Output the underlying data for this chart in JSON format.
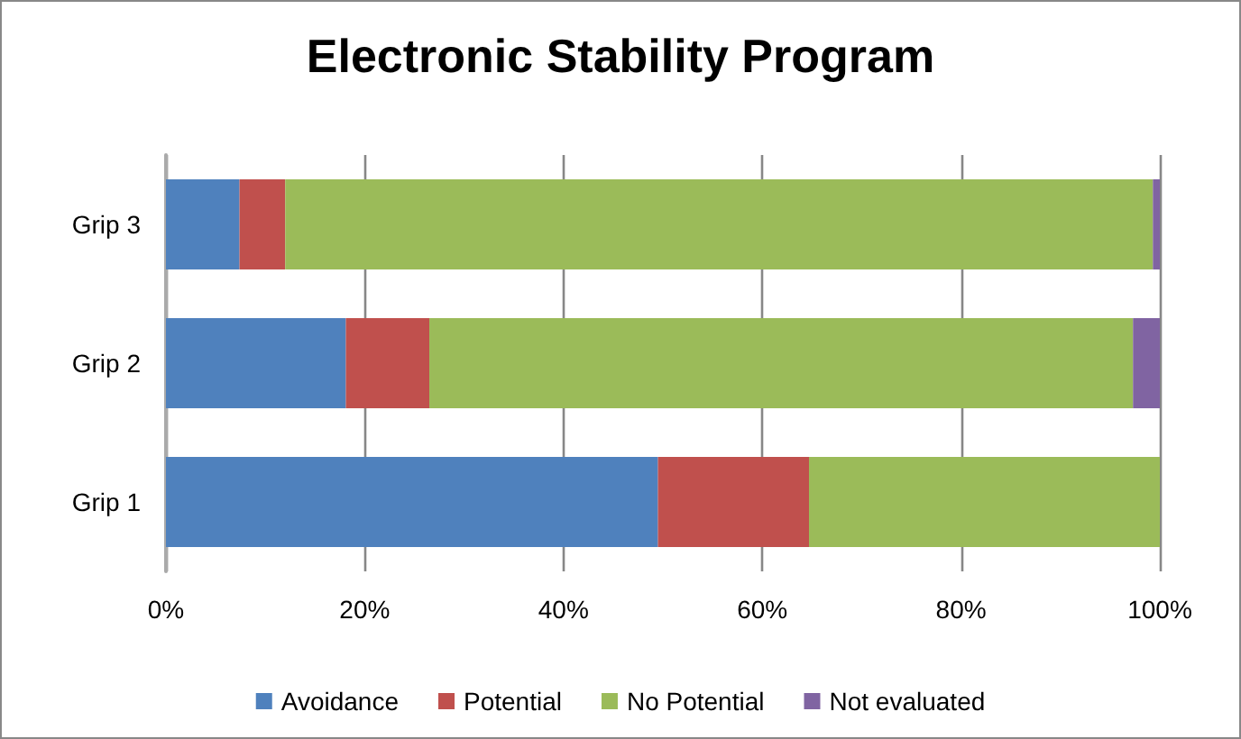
{
  "chart_data": {
    "type": "bar",
    "title": "Electronic Stability Program",
    "orientation": "horizontal",
    "stacked": true,
    "categories": [
      "Grip 3",
      "Grip 2",
      "Grip 1"
    ],
    "series": [
      {
        "name": "Avoidance",
        "color": "#4f81bd",
        "values": [
          7.4,
          18.1,
          49.5
        ]
      },
      {
        "name": "Potential",
        "color": "#c0504d",
        "values": [
          4.6,
          8.4,
          15.2
        ]
      },
      {
        "name": "No Potential",
        "color": "#9bbb59",
        "values": [
          87.3,
          70.8,
          35.3
        ]
      },
      {
        "name": "Not evaluated",
        "color": "#8064a2",
        "values": [
          0.7,
          2.7,
          0
        ]
      }
    ],
    "xlim": [
      0,
      100
    ],
    "xticks": [
      {
        "value": 0,
        "label": "0%"
      },
      {
        "value": 20,
        "label": "20%"
      },
      {
        "value": 40,
        "label": "40%"
      },
      {
        "value": 60,
        "label": "60%"
      },
      {
        "value": 80,
        "label": "80%"
      },
      {
        "value": 100,
        "label": "100%"
      }
    ],
    "grid": "x",
    "legend": "bottom"
  }
}
